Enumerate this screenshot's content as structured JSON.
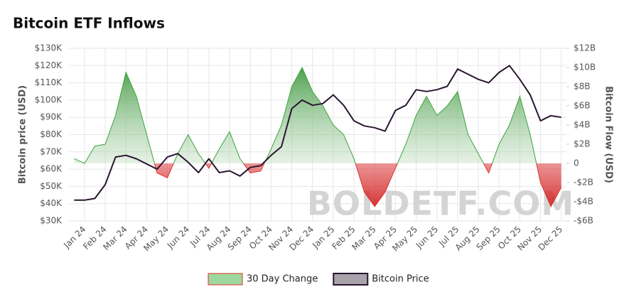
{
  "chart_data": {
    "type": "line",
    "title": "Bitcoin ETF Inflows",
    "ylabel": "Bitcoin price (USD)",
    "y2label": "Bitcoin Flow (USD)",
    "watermark": "BOLDETF.COM",
    "categories": [
      null,
      "Jan 24",
      null,
      "Feb 24",
      null,
      "Mar 24",
      null,
      "Apr 24",
      null,
      "May 24",
      null,
      "Jun 24",
      null,
      "Jul 24",
      null,
      "Aug 24",
      null,
      "Sep 24",
      null,
      "Oct 24",
      null,
      "Nov 24",
      null,
      "Dec 24",
      null,
      "Jan 25",
      null,
      "Feb 25",
      null,
      "Mar 25",
      null,
      "Apr 25",
      null,
      "May 25",
      null,
      "Jun 25",
      null,
      "Jul 25",
      null,
      "Aug 25",
      null,
      "Sep 25",
      null,
      "Oct 25",
      null,
      "Nov 25",
      null,
      "Dec 25"
    ],
    "series": [
      {
        "name": "30 Day Change",
        "axis": "y2",
        "color": "#3aa53a",
        "negative_color": "#e03030",
        "values": [
          500000000.0,
          0,
          1800000000.0,
          2000000000.0,
          5000000000.0,
          9500000000.0,
          7000000000.0,
          3000000000.0,
          -1000000000.0,
          -1500000000.0,
          1000000000.0,
          3000000000.0,
          1000000000.0,
          -500000000.0,
          1500000000.0,
          3300000000.0,
          500000000.0,
          -1000000000.0,
          -800000000.0,
          1500000000.0,
          4000000000.0,
          8000000000.0,
          10000000000.0,
          7500000000.0,
          6000000000.0,
          4000000000.0,
          3000000000.0,
          500000000.0,
          -3000000000.0,
          -4500000000.0,
          -3000000000.0,
          -500000000.0,
          2000000000.0,
          5000000000.0,
          7000000000.0,
          5000000000.0,
          6000000000.0,
          7500000000.0,
          3000000000.0,
          1000000000.0,
          -1000000000.0,
          2000000000.0,
          4000000000.0,
          7000000000.0,
          3000000000.0,
          -2000000000.0,
          -4500000000.0,
          -2500000000.0
        ]
      },
      {
        "name": "Bitcoin Price",
        "color": "#2a1630",
        "values": [
          42000,
          42000,
          43000,
          51000,
          67000,
          68000,
          66000,
          63000,
          60000,
          67000,
          69000,
          64000,
          58000,
          66000,
          58000,
          59000,
          56000,
          61000,
          62000,
          68000,
          73000,
          95000,
          100000,
          97000,
          98000,
          103000,
          97000,
          88000,
          85000,
          84000,
          82000,
          94000,
          97000,
          106000,
          105000,
          106000,
          108000,
          118000,
          115000,
          112000,
          110000,
          116000,
          120000,
          112000,
          103000,
          88000,
          91000,
          90000
        ]
      }
    ],
    "ylim": [
      30000,
      130000
    ],
    "yticks": [
      {
        "value": 30000,
        "label": "$30K"
      },
      {
        "value": 40000,
        "label": "$40K"
      },
      {
        "value": 50000,
        "label": "$50K"
      },
      {
        "value": 60000,
        "label": "$60K"
      },
      {
        "value": 70000,
        "label": "$70K"
      },
      {
        "value": 80000,
        "label": "$80K"
      },
      {
        "value": 90000,
        "label": "$90K"
      },
      {
        "value": 100000,
        "label": "$100K"
      },
      {
        "value": 110000,
        "label": "$110K"
      },
      {
        "value": 120000,
        "label": "$120K"
      },
      {
        "value": 130000,
        "label": "$130K"
      }
    ],
    "y2lim": [
      -6000000000.0,
      12000000000.0
    ],
    "y2ticks": [
      {
        "value": -6000000000.0,
        "label": "-$6B"
      },
      {
        "value": -4000000000.0,
        "label": "-$4B"
      },
      {
        "value": -2000000000.0,
        "label": "-$2B"
      },
      0,
      {
        "value": 2000000000.0,
        "label": "$2B"
      },
      {
        "value": 4000000000.0,
        "label": "$4B"
      },
      {
        "value": 6000000000.0,
        "label": "$6B"
      },
      {
        "value": 8000000000.0,
        "label": "$8B"
      },
      {
        "value": 10000000000.0,
        "label": "$10B"
      },
      {
        "value": 12000000000.0,
        "label": "$12B"
      }
    ],
    "grid": true,
    "legend": "bottom"
  }
}
